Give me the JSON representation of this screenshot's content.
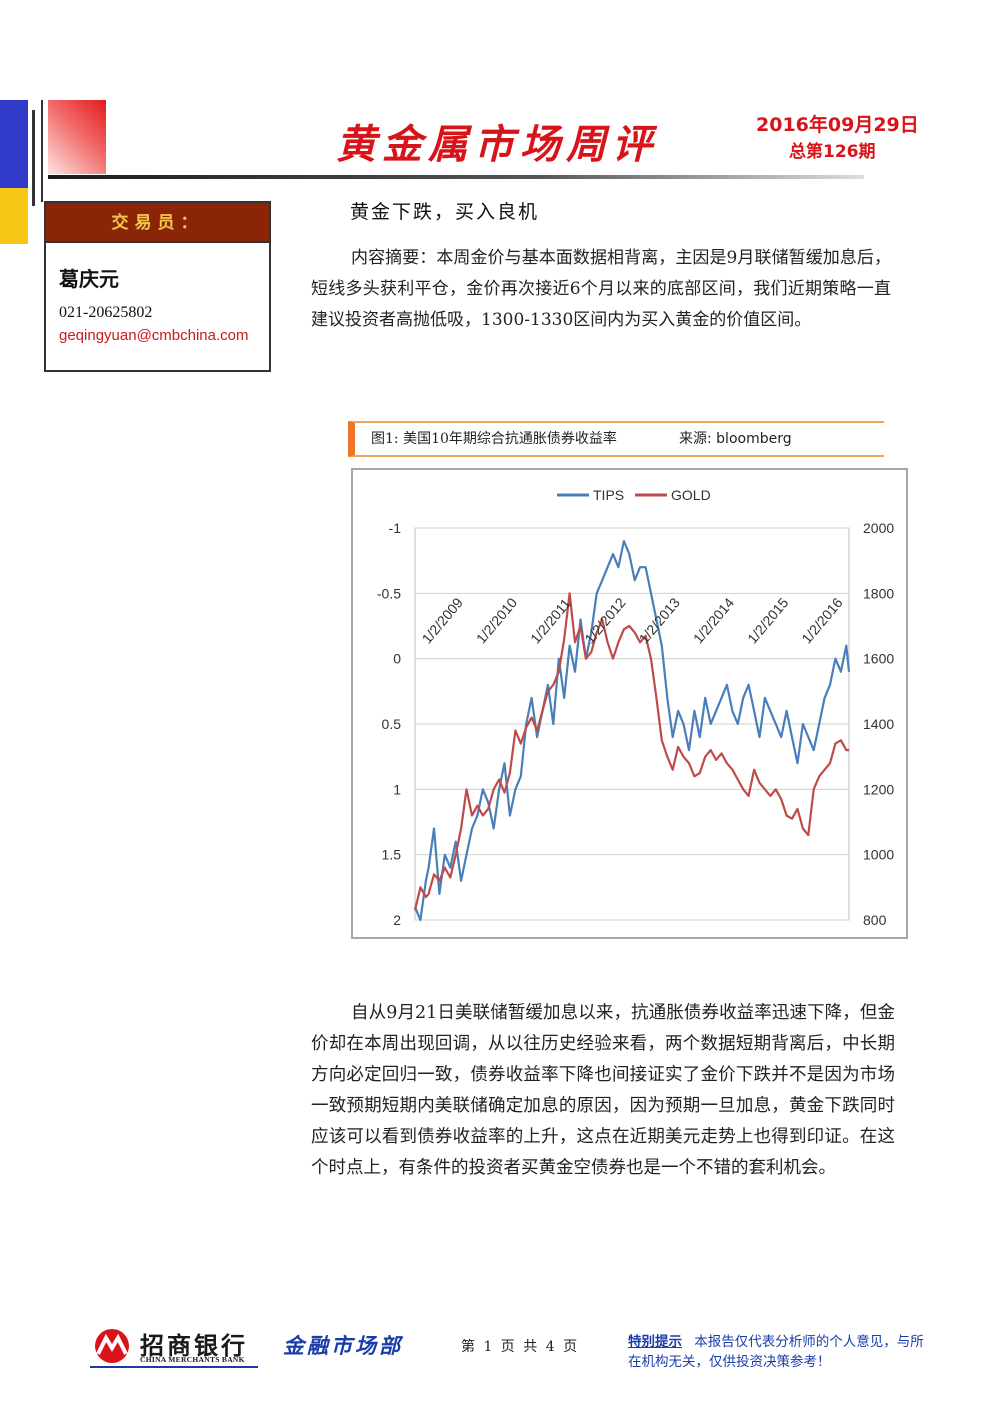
{
  "header": {
    "title": "黄金属市场周评",
    "date": "2016年09月29日",
    "issue": "总第126期"
  },
  "trader": {
    "label": "交易员：",
    "name": "葛庆元",
    "phone": "021-20625802",
    "email": "geqingyuan@cmbchina.com"
  },
  "article": {
    "subtitle": "黄金下跌，买入良机",
    "abstract": "内容摘要：本周金价与基本面数据相背离，主因是9月联储暂缓加息后，短线多头获利平仓，金价再次接近6个月以来的底部区间，我们近期策略一直建议投资者高抛低吸，1300-1330区间内为买入黄金的价值区间。",
    "body": "自从9月21日美联储暂缓加息以来，抗通胀债券收益率迅速下降，但金价却在本周出现回调，从以往历史经验来看，两个数据短期背离后，中长期方向必定回归一致，债券收益率下降也间接证实了金价下跌并不是因为市场一致预期短期内美联储确定加息的原因，因为预期一旦加息，黄金下跌同时应该可以看到债券收益率的上升，这点在近期美元走势上也得到印证。在这个时点上，有条件的投资者买黄金空债券也是一个不错的套利机会。"
  },
  "figure": {
    "caption": "图1:  美国10年期综合抗通胀债券收益率",
    "source": "来源:  bloomberg"
  },
  "chart_data": {
    "type": "line",
    "grid": true,
    "legend_position": "top-center",
    "x_tick_labels": [
      "1/2/2009",
      "1/2/2010",
      "1/2/2011",
      "1/2/2012",
      "1/2/2013",
      "1/2/2014",
      "1/2/2015",
      "1/2/2016"
    ],
    "y_left": {
      "ticks": [
        "-1",
        "-0.5",
        "0",
        "0.5",
        "1",
        "1.5",
        "2"
      ],
      "range": [
        -1,
        2
      ],
      "inverted": true
    },
    "y_right": {
      "ticks": [
        "2000",
        "1800",
        "1600",
        "1400",
        "1200",
        "1000",
        "800"
      ],
      "range": [
        800,
        2000
      ]
    },
    "series": [
      {
        "name": "TIPS",
        "color": "#4a7ebb",
        "axis": "left",
        "x": [
          2008.75,
          2008.85,
          2008.95,
          2009.0,
          2009.1,
          2009.2,
          2009.3,
          2009.4,
          2009.5,
          2009.6,
          2009.7,
          2009.8,
          2009.9,
          2010.0,
          2010.1,
          2010.2,
          2010.3,
          2010.4,
          2010.5,
          2010.6,
          2010.7,
          2010.8,
          2010.9,
          2011.0,
          2011.1,
          2011.2,
          2011.3,
          2011.4,
          2011.5,
          2011.6,
          2011.7,
          2011.8,
          2011.9,
          2012.0,
          2012.1,
          2012.2,
          2012.3,
          2012.4,
          2012.5,
          2012.6,
          2012.7,
          2012.8,
          2012.9,
          2013.0,
          2013.1,
          2013.2,
          2013.3,
          2013.4,
          2013.5,
          2013.6,
          2013.7,
          2013.8,
          2013.9,
          2014.0,
          2014.1,
          2014.2,
          2014.3,
          2014.4,
          2014.5,
          2014.6,
          2014.7,
          2014.8,
          2014.9,
          2015.0,
          2015.1,
          2015.2,
          2015.3,
          2015.4,
          2015.5,
          2015.6,
          2015.7,
          2015.8,
          2015.9,
          2016.0,
          2016.1,
          2016.2,
          2016.3,
          2016.4,
          2016.5,
          2016.6,
          2016.7,
          2016.75
        ],
        "y": [
          1.9,
          2.0,
          1.7,
          1.6,
          1.3,
          1.8,
          1.5,
          1.6,
          1.4,
          1.7,
          1.5,
          1.3,
          1.2,
          1.0,
          1.1,
          1.3,
          1.0,
          0.8,
          1.2,
          1.0,
          0.9,
          0.5,
          0.3,
          0.6,
          0.4,
          0.2,
          0.5,
          0.0,
          0.3,
          -0.1,
          0.1,
          -0.3,
          0.0,
          -0.2,
          -0.5,
          -0.6,
          -0.7,
          -0.8,
          -0.7,
          -0.9,
          -0.8,
          -0.6,
          -0.7,
          -0.7,
          -0.5,
          -0.3,
          -0.1,
          0.3,
          0.6,
          0.4,
          0.5,
          0.7,
          0.4,
          0.6,
          0.3,
          0.5,
          0.4,
          0.3,
          0.2,
          0.4,
          0.5,
          0.3,
          0.2,
          0.4,
          0.6,
          0.3,
          0.4,
          0.5,
          0.6,
          0.4,
          0.6,
          0.8,
          0.5,
          0.6,
          0.7,
          0.5,
          0.3,
          0.2,
          0.0,
          0.1,
          -0.1,
          0.1
        ]
      },
      {
        "name": "GOLD",
        "color": "#be4b48",
        "axis": "right",
        "x": [
          2008.75,
          2008.85,
          2008.95,
          2009.0,
          2009.1,
          2009.2,
          2009.3,
          2009.4,
          2009.5,
          2009.6,
          2009.7,
          2009.8,
          2009.9,
          2010.0,
          2010.1,
          2010.2,
          2010.3,
          2010.4,
          2010.5,
          2010.6,
          2010.7,
          2010.8,
          2010.9,
          2011.0,
          2011.1,
          2011.2,
          2011.3,
          2011.4,
          2011.5,
          2011.6,
          2011.7,
          2011.8,
          2011.9,
          2012.0,
          2012.1,
          2012.2,
          2012.3,
          2012.4,
          2012.5,
          2012.6,
          2012.7,
          2012.8,
          2012.9,
          2013.0,
          2013.1,
          2013.2,
          2013.3,
          2013.4,
          2013.5,
          2013.6,
          2013.7,
          2013.8,
          2013.9,
          2014.0,
          2014.1,
          2014.2,
          2014.3,
          2014.4,
          2014.5,
          2014.6,
          2014.7,
          2014.8,
          2014.9,
          2015.0,
          2015.1,
          2015.2,
          2015.3,
          2015.4,
          2015.5,
          2015.6,
          2015.7,
          2015.8,
          2015.9,
          2016.0,
          2016.1,
          2016.2,
          2016.3,
          2016.4,
          2016.5,
          2016.6,
          2016.7,
          2016.75
        ],
        "y": [
          830,
          900,
          870,
          880,
          940,
          920,
          960,
          930,
          1000,
          1080,
          1200,
          1120,
          1150,
          1120,
          1140,
          1200,
          1230,
          1190,
          1250,
          1380,
          1340,
          1390,
          1420,
          1380,
          1440,
          1500,
          1520,
          1560,
          1660,
          1800,
          1650,
          1700,
          1600,
          1620,
          1680,
          1720,
          1650,
          1600,
          1650,
          1690,
          1700,
          1680,
          1650,
          1670,
          1600,
          1480,
          1350,
          1300,
          1260,
          1330,
          1300,
          1280,
          1240,
          1250,
          1300,
          1320,
          1290,
          1310,
          1280,
          1260,
          1230,
          1200,
          1180,
          1260,
          1220,
          1200,
          1180,
          1200,
          1170,
          1120,
          1110,
          1140,
          1080,
          1060,
          1200,
          1240,
          1260,
          1280,
          1340,
          1350,
          1320,
          1320
        ]
      }
    ]
  },
  "footer": {
    "bank_name": "招商银行",
    "bank_name_en": "CHINA MERCHANTS BANK",
    "department": "金融市场部",
    "page_info": "第 1 页 共 4 页",
    "notice_label": "特别提示",
    "notice_text": "本报告仅代表分析师的个人意见，与所在机构无关，仅供投资决策参考！"
  },
  "colors": {
    "brand_red": "#d8141a",
    "brand_blue": "#1a3caa",
    "tips_line": "#4a7ebb",
    "gold_line": "#be4b48"
  }
}
